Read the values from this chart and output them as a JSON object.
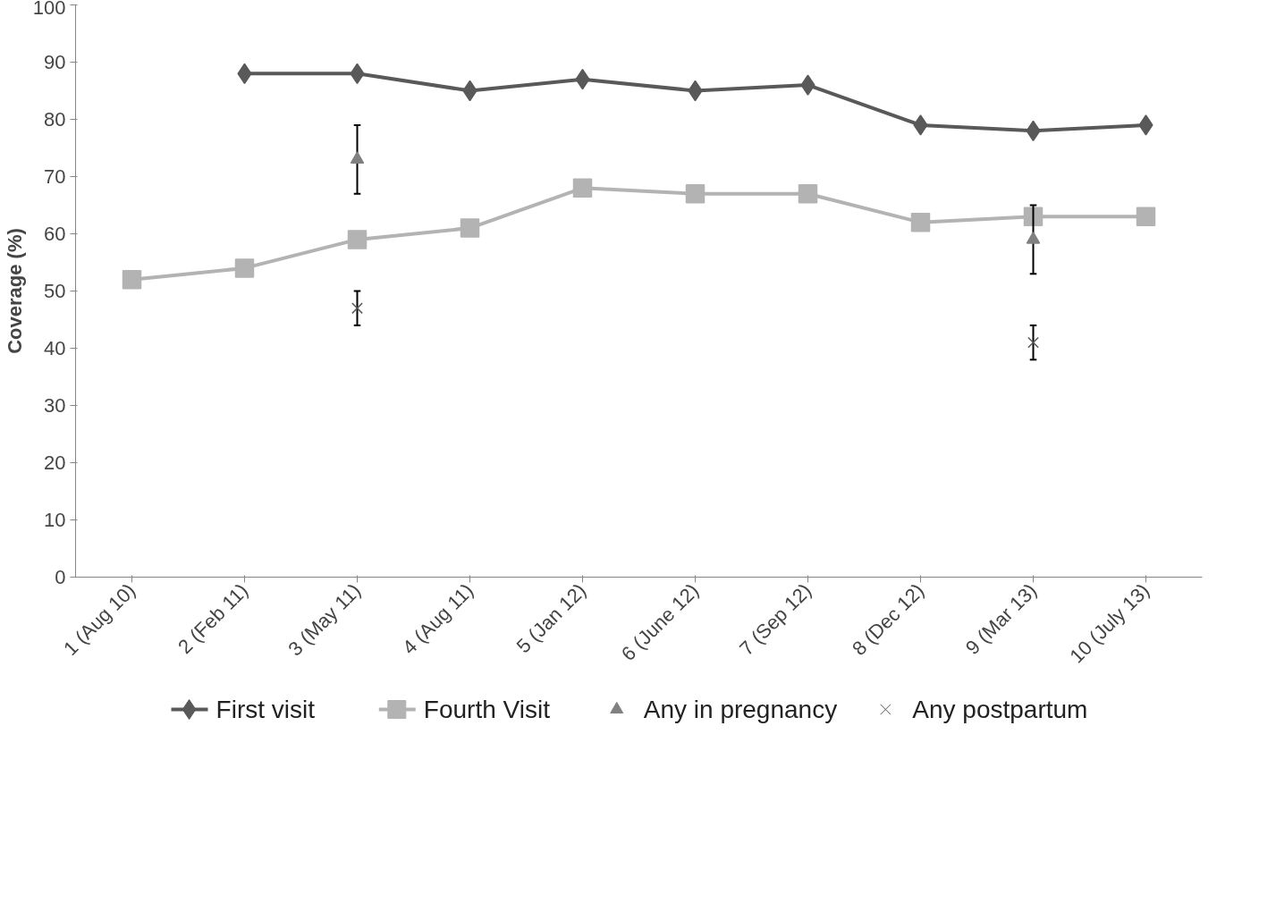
{
  "chart_data": {
    "type": "line",
    "ylabel": "Coverage (%)",
    "categories": [
      "1 (Aug 10)",
      "2 (Feb 11)",
      "3 (May 11)",
      "4 (Aug 11)",
      "5 (Jan 12)",
      "6 (June 12)",
      "7 (Sep 12)",
      "8 (Dec 12)",
      "9 (Mar 13)",
      "10 (July 13)"
    ],
    "ylim": [
      0,
      100
    ],
    "yticks": [
      0,
      10,
      20,
      30,
      40,
      50,
      60,
      70,
      80,
      90,
      100
    ],
    "grid": false,
    "legend": "bottom",
    "line_style": "solid",
    "series": [
      {
        "name": "First visit",
        "marker": "diamond",
        "color": "#595959",
        "values": [
          null,
          88,
          88,
          85,
          87,
          85,
          86,
          79,
          78,
          79
        ]
      },
      {
        "name": "Fourth Visit",
        "marker": "square",
        "color": "#b3b3b3",
        "values": [
          52,
          54,
          59,
          61,
          68,
          67,
          67,
          62,
          63,
          63
        ]
      },
      {
        "name": "Any in pregnancy",
        "type": "scatter",
        "marker": "triangle",
        "color": "#808080",
        "values": [
          null,
          null,
          73,
          null,
          null,
          null,
          null,
          null,
          59,
          null
        ],
        "errors": [
          null,
          null,
          [
            67,
            79
          ],
          null,
          null,
          null,
          null,
          null,
          [
            53,
            65
          ],
          null
        ]
      },
      {
        "name": "Any postpartum",
        "type": "scatter",
        "marker": "cross",
        "color": "#595959",
        "values": [
          null,
          null,
          47,
          null,
          null,
          null,
          null,
          null,
          41,
          null
        ],
        "errors": [
          null,
          null,
          [
            44,
            50
          ],
          null,
          null,
          null,
          null,
          null,
          [
            38,
            44
          ],
          null
        ]
      }
    ]
  }
}
